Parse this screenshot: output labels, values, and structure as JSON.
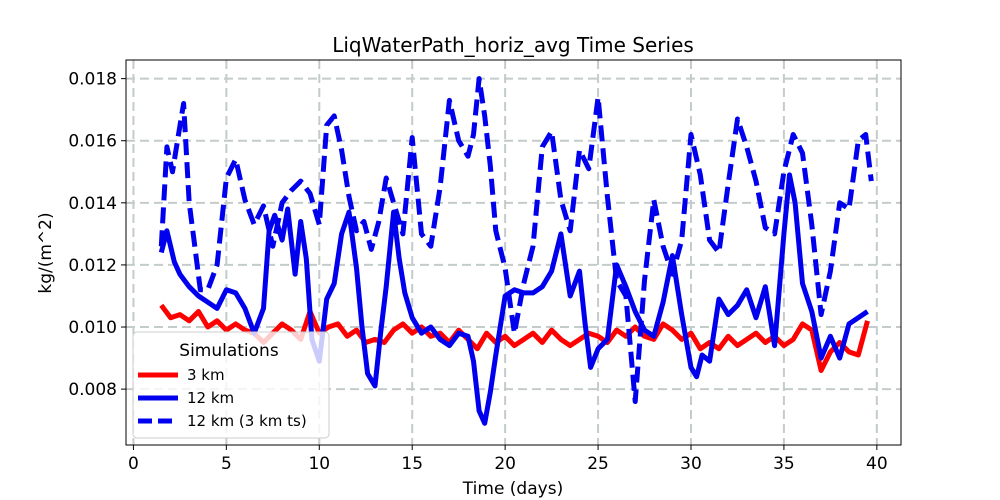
{
  "chart_data": {
    "type": "line",
    "title": "LiqWaterPath_horiz_avg Time Series",
    "xlabel": "Time (days)",
    "ylabel": "kg/(m^2)",
    "xlim": [
      -0.4,
      41.3
    ],
    "ylim": [
      0.0062,
      0.0186
    ],
    "xticks": [
      0,
      5,
      10,
      15,
      20,
      25,
      30,
      35,
      40
    ],
    "yticks": [
      0.008,
      0.01,
      0.012,
      0.014,
      0.016,
      0.018
    ],
    "xtick_labels": [
      "0",
      "5",
      "10",
      "15",
      "20",
      "25",
      "30",
      "35",
      "40"
    ],
    "ytick_labels": [
      "0.008",
      "0.010",
      "0.012",
      "0.014",
      "0.016",
      "0.018"
    ],
    "grid": true,
    "legend": {
      "title": "Simulations",
      "placement": "lower-left",
      "entries": [
        "3 km",
        "12 km",
        "12 km (3 km ts)"
      ]
    },
    "series": [
      {
        "name": "3 km",
        "color": "#ff0000",
        "style": "solid",
        "x": [
          1.5,
          2.0,
          2.5,
          3.0,
          3.5,
          4.0,
          4.5,
          5.0,
          5.5,
          6.0,
          6.5,
          7.0,
          7.5,
          8.0,
          8.5,
          9.0,
          9.5,
          10.0,
          10.5,
          11.0,
          11.5,
          12.0,
          12.5,
          13.0,
          13.5,
          14.0,
          14.5,
          15.0,
          15.5,
          16.0,
          16.5,
          17.0,
          17.5,
          18.0,
          18.5,
          19.0,
          19.5,
          20.0,
          20.5,
          21.0,
          21.5,
          22.0,
          22.5,
          23.0,
          23.5,
          24.0,
          24.5,
          25.0,
          25.5,
          26.0,
          26.5,
          27.0,
          27.5,
          28.0,
          28.5,
          29.0,
          29.5,
          30.0,
          30.5,
          31.0,
          31.5,
          32.0,
          32.5,
          33.0,
          33.5,
          34.0,
          34.5,
          35.0,
          35.5,
          36.0,
          36.5,
          37.0,
          37.5,
          38.0,
          38.5,
          39.0,
          39.5
        ],
        "values": [
          0.0107,
          0.0103,
          0.0104,
          0.0102,
          0.0105,
          0.01,
          0.0102,
          0.0099,
          0.0101,
          0.0099,
          0.0098,
          0.0095,
          0.0098,
          0.0101,
          0.0099,
          0.0096,
          0.0105,
          0.0098,
          0.01,
          0.0101,
          0.0097,
          0.0099,
          0.0095,
          0.0096,
          0.0095,
          0.0099,
          0.0101,
          0.0098,
          0.01,
          0.0097,
          0.0098,
          0.0095,
          0.0099,
          0.0096,
          0.0093,
          0.0098,
          0.0095,
          0.0097,
          0.0094,
          0.0096,
          0.0098,
          0.0095,
          0.0099,
          0.0096,
          0.0094,
          0.0096,
          0.0098,
          0.0097,
          0.0095,
          0.0099,
          0.0097,
          0.01,
          0.0097,
          0.0096,
          0.0101,
          0.0099,
          0.0096,
          0.0098,
          0.0093,
          0.0095,
          0.0093,
          0.0097,
          0.0094,
          0.0096,
          0.0098,
          0.0095,
          0.0097,
          0.0094,
          0.0096,
          0.0101,
          0.0099,
          0.0086,
          0.0092,
          0.0095,
          0.0092,
          0.0091,
          0.0102
        ]
      },
      {
        "name": "12 km",
        "color": "#0000ee",
        "style": "solid",
        "x": [
          1.5,
          1.8,
          2.2,
          2.5,
          3.0,
          3.5,
          4.0,
          4.5,
          5.0,
          5.5,
          6.0,
          6.5,
          7.0,
          7.3,
          7.6,
          8.0,
          8.3,
          8.7,
          9.0,
          9.3,
          9.6,
          10.0,
          10.4,
          10.8,
          11.2,
          11.6,
          12.0,
          12.3,
          12.6,
          13.0,
          13.3,
          13.6,
          14.0,
          14.3,
          14.6,
          15.0,
          15.5,
          16.0,
          16.5,
          17.0,
          17.5,
          18.0,
          18.3,
          18.6,
          18.9,
          19.2,
          19.5,
          20.0,
          20.5,
          21.0,
          21.5,
          22.0,
          22.5,
          23.0,
          23.5,
          24.0,
          24.3,
          24.6,
          25.0,
          25.5,
          26.0,
          26.5,
          27.0,
          27.5,
          28.0,
          28.5,
          29.0,
          29.5,
          30.0,
          30.3,
          30.6,
          31.0,
          31.5,
          32.0,
          32.5,
          33.0,
          33.5,
          34.0,
          34.5,
          35.0,
          35.3,
          35.6,
          36.0,
          36.5,
          37.0,
          37.5,
          38.0,
          38.5,
          39.0,
          39.5
        ],
        "values": [
          0.0124,
          0.0131,
          0.0121,
          0.0117,
          0.0113,
          0.011,
          0.0108,
          0.0106,
          0.0112,
          0.0111,
          0.0106,
          0.0098,
          0.0106,
          0.0131,
          0.0136,
          0.0128,
          0.0138,
          0.0117,
          0.0134,
          0.0122,
          0.0096,
          0.0089,
          0.0109,
          0.0114,
          0.013,
          0.0137,
          0.0119,
          0.01,
          0.0085,
          0.0081,
          0.0098,
          0.0113,
          0.0137,
          0.0122,
          0.0111,
          0.0103,
          0.0098,
          0.01,
          0.0096,
          0.0094,
          0.0098,
          0.0097,
          0.0089,
          0.0073,
          0.0069,
          0.0079,
          0.0091,
          0.011,
          0.0112,
          0.0111,
          0.0111,
          0.0113,
          0.0118,
          0.013,
          0.011,
          0.0118,
          0.0101,
          0.0087,
          0.0093,
          0.0096,
          0.012,
          0.0113,
          0.0105,
          0.0099,
          0.0097,
          0.0108,
          0.0123,
          0.0104,
          0.0087,
          0.0084,
          0.0091,
          0.0089,
          0.0109,
          0.0104,
          0.0107,
          0.0112,
          0.0103,
          0.0113,
          0.0094,
          0.013,
          0.0149,
          0.014,
          0.0114,
          0.0105,
          0.009,
          0.0097,
          0.009,
          0.0101,
          0.0103,
          0.0105
        ]
      },
      {
        "name": "12 km (3 km ts)",
        "color": "#0000ee",
        "style": "dashed",
        "x": [
          1.5,
          1.8,
          2.1,
          2.4,
          2.7,
          3.0,
          3.3,
          3.6,
          4.0,
          4.5,
          5.0,
          5.5,
          6.0,
          6.5,
          7.0,
          7.5,
          8.0,
          8.5,
          9.0,
          9.5,
          10.0,
          10.4,
          10.8,
          11.2,
          11.6,
          12.0,
          12.4,
          12.8,
          13.2,
          13.6,
          14.0,
          14.5,
          15.0,
          15.5,
          16.0,
          16.5,
          17.0,
          17.5,
          18.0,
          18.3,
          18.6,
          18.9,
          19.2,
          19.5,
          20.0,
          20.5,
          21.0,
          21.5,
          22.0,
          22.5,
          23.0,
          23.5,
          24.0,
          24.5,
          25.0,
          25.5,
          26.0,
          26.5,
          27.0,
          27.5,
          28.0,
          28.5,
          29.0,
          29.5,
          30.0,
          30.5,
          31.0,
          31.5,
          32.0,
          32.5,
          33.0,
          33.5,
          34.0,
          34.5,
          35.0,
          35.5,
          36.0,
          36.5,
          37.0,
          37.5,
          38.0,
          38.5,
          39.0,
          39.4,
          39.7
        ],
        "values": [
          0.0126,
          0.0158,
          0.015,
          0.0161,
          0.0172,
          0.014,
          0.0126,
          0.0112,
          0.0112,
          0.012,
          0.0148,
          0.0154,
          0.0141,
          0.0133,
          0.0139,
          0.0126,
          0.014,
          0.0144,
          0.0147,
          0.0143,
          0.0133,
          0.0165,
          0.0168,
          0.0157,
          0.0142,
          0.0131,
          0.0134,
          0.0125,
          0.0134,
          0.0148,
          0.014,
          0.013,
          0.0161,
          0.013,
          0.0126,
          0.0145,
          0.0173,
          0.016,
          0.0155,
          0.0162,
          0.018,
          0.0168,
          0.0152,
          0.0131,
          0.0119,
          0.0098,
          0.0114,
          0.0126,
          0.0158,
          0.0163,
          0.0141,
          0.0131,
          0.0157,
          0.0151,
          0.0174,
          0.0142,
          0.0115,
          0.011,
          0.0076,
          0.0115,
          0.0141,
          0.0126,
          0.0117,
          0.0128,
          0.0162,
          0.0149,
          0.0128,
          0.0124,
          0.0146,
          0.0167,
          0.0158,
          0.0147,
          0.0132,
          0.013,
          0.015,
          0.0162,
          0.0156,
          0.0133,
          0.0104,
          0.0118,
          0.014,
          0.0138,
          0.016,
          0.0162,
          0.0147
        ]
      }
    ]
  }
}
